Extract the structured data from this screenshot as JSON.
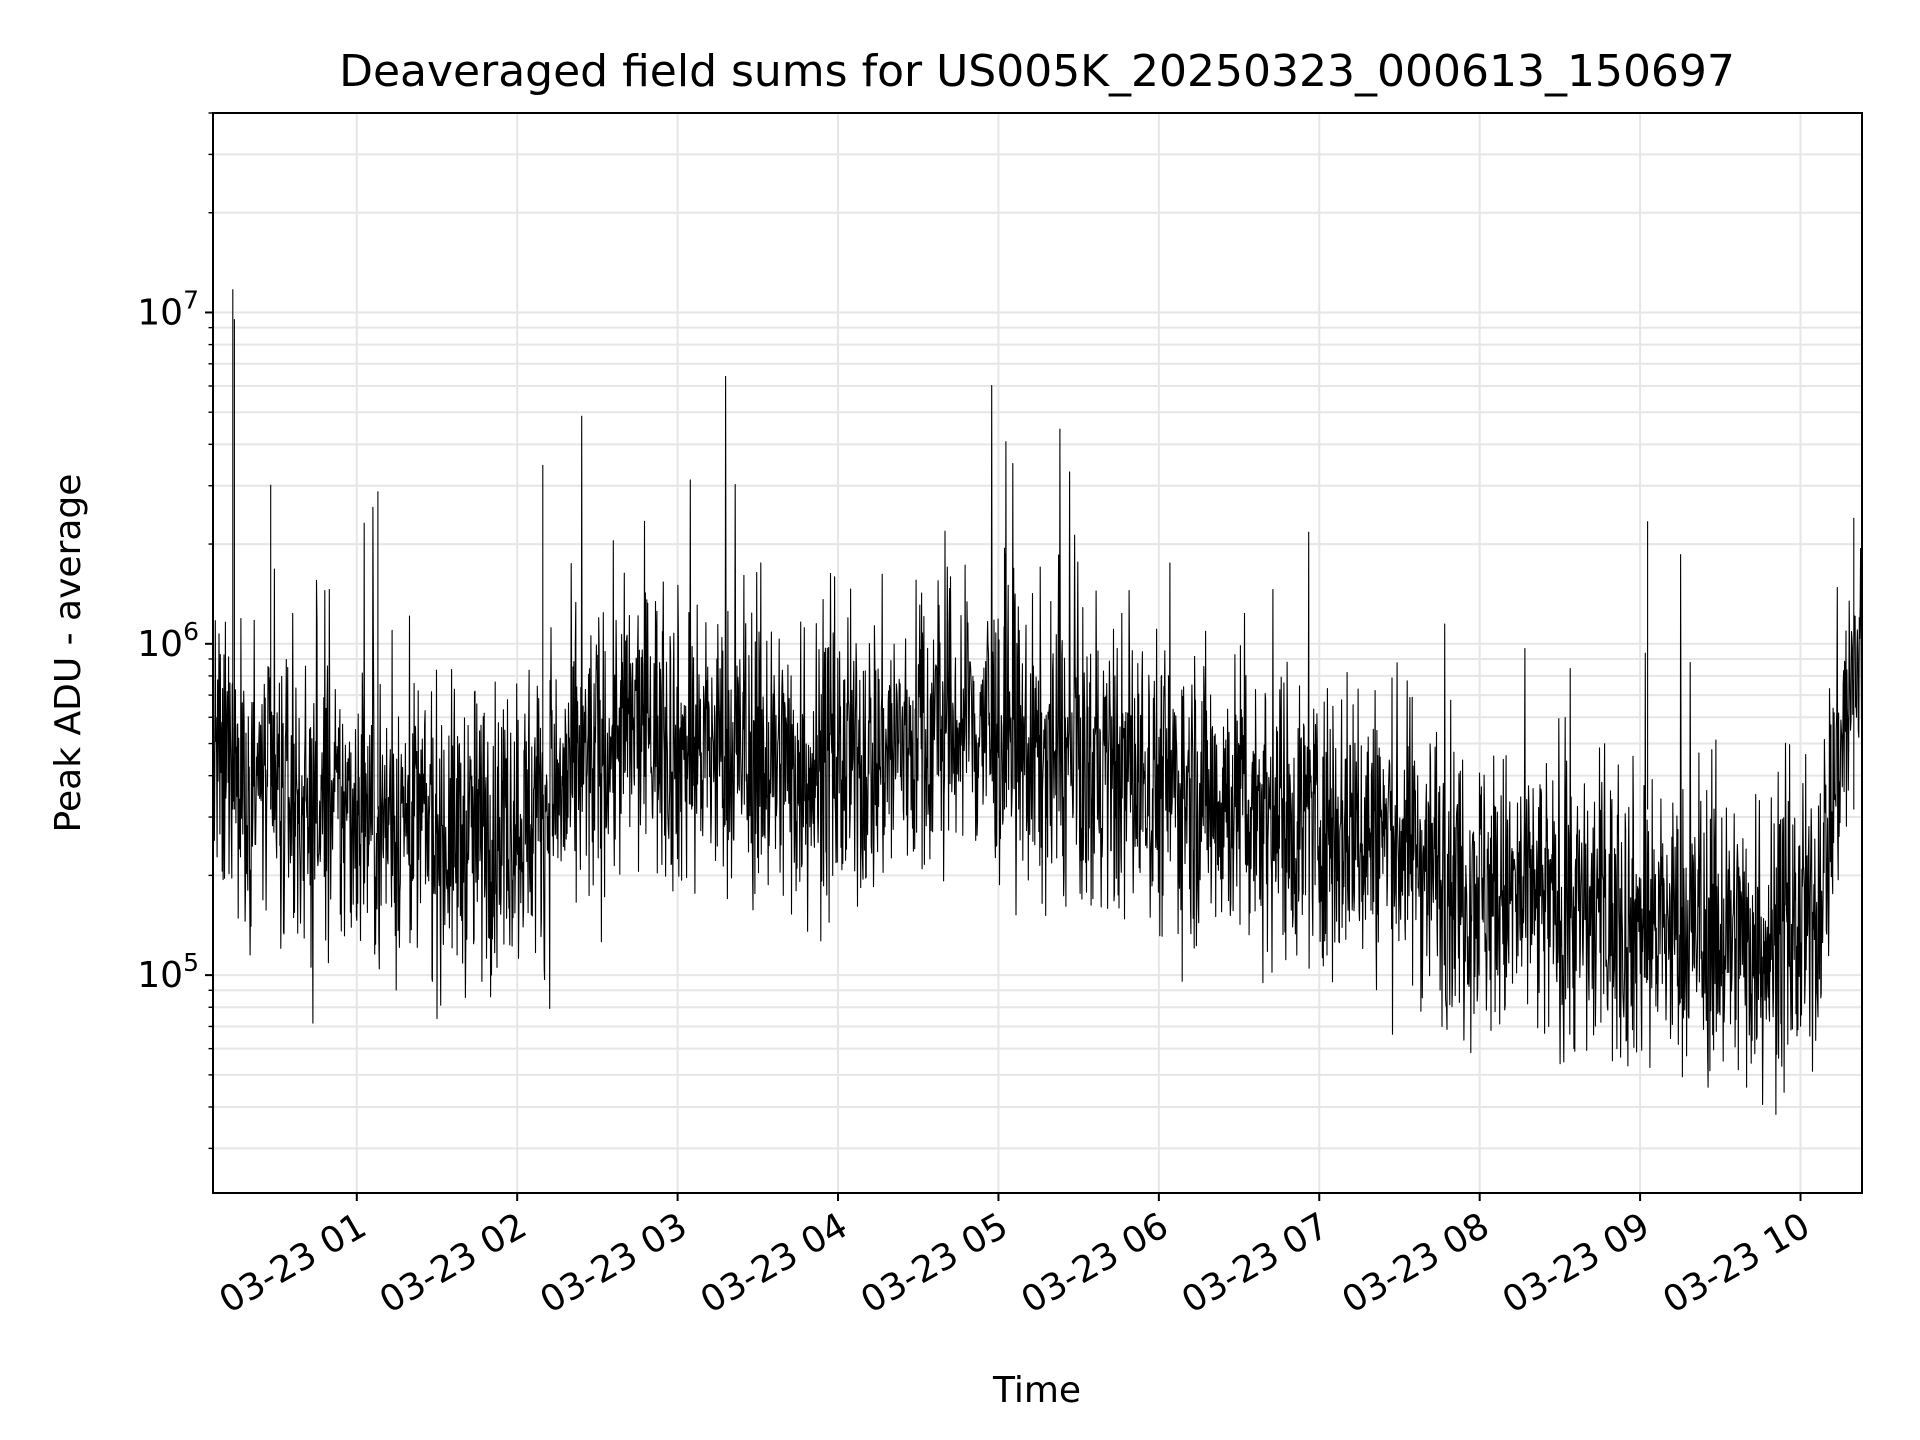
{
  "chart_data": {
    "type": "line",
    "title": "Deaveraged field sums for US005K_20250323_000613_150697",
    "xlabel": "Time",
    "ylabel": "Peak ADU - average",
    "y_scale": "log",
    "ylim": [
      22000,
      40000000
    ],
    "xlim": [
      "2025-03-23T00:06:13",
      "2025-03-23T10:23:00"
    ],
    "x_ticks": [
      "2025-03-23T01:00",
      "2025-03-23T02:00",
      "2025-03-23T03:00",
      "2025-03-23T04:00",
      "2025-03-23T05:00",
      "2025-03-23T06:00",
      "2025-03-23T07:00",
      "2025-03-23T08:00",
      "2025-03-23T09:00",
      "2025-03-23T10:00"
    ],
    "x_tick_labels": [
      "03-23 01",
      "03-23 02",
      "03-23 03",
      "03-23 04",
      "03-23 05",
      "03-23 06",
      "03-23 07",
      "03-23 08",
      "03-23 09",
      "03-23 10"
    ],
    "y_ticks": [
      100000,
      1000000,
      10000000
    ],
    "y_tick_labels": [
      {
        "base": "10",
        "exp": "5"
      },
      {
        "base": "10",
        "exp": "6"
      },
      {
        "base": "10",
        "exp": "7"
      }
    ],
    "grid": true,
    "line_color": "#000000",
    "grid_color": "#e6e6e6",
    "series": [
      {
        "x": [
          "2025-03-23T00:06",
          "2025-03-23T00:10",
          "2025-03-23T00:13",
          "2025-03-23T00:15",
          "2025-03-23T00:20",
          "2025-03-23T00:25",
          "2025-03-23T00:30",
          "2025-03-23T00:35",
          "2025-03-23T00:40",
          "2025-03-23T00:45",
          "2025-03-23T00:50",
          "2025-03-23T00:55",
          "2025-03-23T01:00",
          "2025-03-23T01:10",
          "2025-03-23T01:20",
          "2025-03-23T01:30",
          "2025-03-23T01:40",
          "2025-03-23T01:50",
          "2025-03-23T02:00",
          "2025-03-23T02:10",
          "2025-03-23T02:20",
          "2025-03-23T02:30",
          "2025-03-23T02:40",
          "2025-03-23T02:50",
          "2025-03-23T03:00",
          "2025-03-23T03:15",
          "2025-03-23T03:30",
          "2025-03-23T03:45",
          "2025-03-23T04:00",
          "2025-03-23T04:15",
          "2025-03-23T04:25",
          "2025-03-23T04:40",
          "2025-03-23T04:55",
          "2025-03-23T05:10",
          "2025-03-23T05:30",
          "2025-03-23T05:50",
          "2025-03-23T06:10",
          "2025-03-23T06:30",
          "2025-03-23T06:50",
          "2025-03-23T07:10",
          "2025-03-23T07:30",
          "2025-03-23T07:50",
          "2025-03-23T08:10",
          "2025-03-23T08:30",
          "2025-03-23T08:50",
          "2025-03-23T09:10",
          "2025-03-23T09:30",
          "2025-03-23T09:50",
          "2025-03-23T10:05",
          "2025-03-23T10:15",
          "2025-03-23T10:23"
        ],
        "y": [
          500000,
          350000,
          500000,
          400000,
          350000,
          380000,
          330000,
          350000,
          320000,
          300000,
          300000,
          310000,
          330000,
          290000,
          300000,
          270000,
          260000,
          280000,
          300000,
          320000,
          380000,
          450000,
          540000,
          580000,
          480000,
          480000,
          450000,
          420000,
          420000,
          460000,
          510000,
          560000,
          560000,
          470000,
          420000,
          400000,
          360000,
          340000,
          300000,
          280000,
          260000,
          200000,
          170000,
          160000,
          150000,
          140000,
          130000,
          125000,
          140000,
          500000,
          1000000
        ]
      }
    ]
  }
}
